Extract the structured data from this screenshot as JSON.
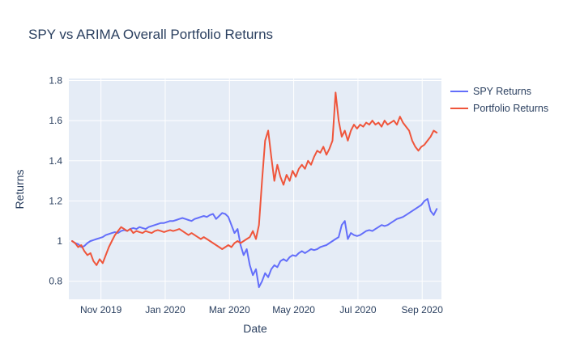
{
  "title": "SPY vs ARIMA Overall Portfolio Returns",
  "chart_data": {
    "type": "line",
    "title": "SPY vs ARIMA Overall Portfolio Returns",
    "xlabel": "Date",
    "ylabel": "Returns",
    "x_unit": "months since Oct 2019",
    "xlim": [
      0,
      11.6
    ],
    "ylim": [
      0.71,
      1.81
    ],
    "grid": true,
    "plot_bg": "#e5ecf6",
    "grid_color": "#ffffff",
    "tick_color": "#2a3f5f",
    "legend_position": "top-right-outside",
    "xticks": {
      "values": [
        1,
        3,
        5,
        7,
        9,
        11
      ],
      "labels": [
        "Nov 2019",
        "Jan 2020",
        "Mar 2020",
        "May 2020",
        "Jul 2020",
        "Sep 2020"
      ]
    },
    "yticks": {
      "values": [
        0.8,
        1.0,
        1.2,
        1.4,
        1.6,
        1.8
      ],
      "labels": [
        "0.8",
        "1",
        "1.2",
        "1.4",
        "1.6",
        "1.8"
      ]
    },
    "x_start": 0.1,
    "x_step": 0.0954,
    "series": [
      {
        "name": "SPY Returns",
        "color": "#636efa",
        "values": [
          1.0,
          0.99,
          0.985,
          0.97,
          0.975,
          0.99,
          1.0,
          1.005,
          1.01,
          1.015,
          1.02,
          1.03,
          1.035,
          1.04,
          1.045,
          1.04,
          1.05,
          1.055,
          1.05,
          1.06,
          1.065,
          1.06,
          1.07,
          1.065,
          1.06,
          1.07,
          1.075,
          1.08,
          1.085,
          1.09,
          1.09,
          1.095,
          1.1,
          1.1,
          1.105,
          1.11,
          1.115,
          1.11,
          1.105,
          1.1,
          1.11,
          1.115,
          1.12,
          1.125,
          1.12,
          1.13,
          1.135,
          1.11,
          1.125,
          1.14,
          1.135,
          1.12,
          1.08,
          1.04,
          1.06,
          0.98,
          0.93,
          0.96,
          0.88,
          0.83,
          0.86,
          0.77,
          0.8,
          0.84,
          0.82,
          0.86,
          0.88,
          0.87,
          0.9,
          0.91,
          0.9,
          0.92,
          0.93,
          0.925,
          0.94,
          0.95,
          0.94,
          0.95,
          0.96,
          0.955,
          0.96,
          0.97,
          0.975,
          0.98,
          0.99,
          1.0,
          1.01,
          1.02,
          1.08,
          1.1,
          1.01,
          1.04,
          1.03,
          1.025,
          1.03,
          1.04,
          1.05,
          1.055,
          1.05,
          1.06,
          1.07,
          1.08,
          1.075,
          1.08,
          1.09,
          1.1,
          1.11,
          1.115,
          1.12,
          1.13,
          1.14,
          1.15,
          1.16,
          1.17,
          1.18,
          1.2,
          1.21,
          1.15,
          1.13,
          1.16
        ]
      },
      {
        "name": "Portfolio Returns",
        "color": "#ef553b",
        "values": [
          1.0,
          0.99,
          0.97,
          0.98,
          0.95,
          0.93,
          0.94,
          0.9,
          0.88,
          0.91,
          0.89,
          0.93,
          0.97,
          1.0,
          1.03,
          1.05,
          1.07,
          1.06,
          1.05,
          1.06,
          1.04,
          1.05,
          1.045,
          1.04,
          1.05,
          1.045,
          1.04,
          1.05,
          1.055,
          1.05,
          1.045,
          1.05,
          1.055,
          1.05,
          1.055,
          1.06,
          1.05,
          1.04,
          1.03,
          1.04,
          1.03,
          1.02,
          1.01,
          1.02,
          1.01,
          1.0,
          0.99,
          0.98,
          0.97,
          0.96,
          0.97,
          0.98,
          0.97,
          0.99,
          1.0,
          0.99,
          1.0,
          1.01,
          1.02,
          1.05,
          1.01,
          1.08,
          1.3,
          1.5,
          1.55,
          1.42,
          1.3,
          1.38,
          1.32,
          1.28,
          1.33,
          1.3,
          1.35,
          1.32,
          1.36,
          1.38,
          1.36,
          1.4,
          1.38,
          1.42,
          1.45,
          1.44,
          1.47,
          1.43,
          1.46,
          1.5,
          1.74,
          1.6,
          1.52,
          1.55,
          1.5,
          1.55,
          1.58,
          1.56,
          1.58,
          1.57,
          1.59,
          1.58,
          1.6,
          1.58,
          1.59,
          1.57,
          1.6,
          1.58,
          1.59,
          1.6,
          1.58,
          1.62,
          1.59,
          1.57,
          1.55,
          1.5,
          1.47,
          1.45,
          1.47,
          1.48,
          1.5,
          1.52,
          1.55,
          1.54
        ]
      }
    ]
  }
}
